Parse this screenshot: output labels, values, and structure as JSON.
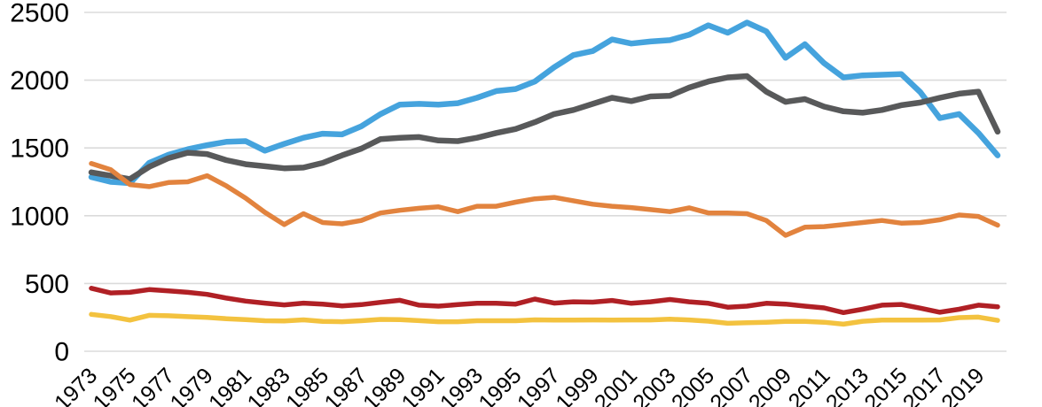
{
  "chart_data": {
    "type": "line",
    "title": "",
    "xlabel": "",
    "ylabel": "",
    "legend": "none",
    "grid": "horizontal-only",
    "ylim": [
      0,
      2500
    ],
    "y_ticks": [
      0,
      500,
      1000,
      1500,
      2000,
      2500
    ],
    "x": [
      1973,
      1974,
      1975,
      1976,
      1977,
      1978,
      1979,
      1980,
      1981,
      1982,
      1983,
      1984,
      1985,
      1986,
      1987,
      1988,
      1989,
      1990,
      1991,
      1992,
      1993,
      1994,
      1995,
      1996,
      1997,
      1998,
      1999,
      2000,
      2001,
      2002,
      2003,
      2004,
      2005,
      2006,
      2007,
      2008,
      2009,
      2010,
      2011,
      2012,
      2013,
      2014,
      2015,
      2016,
      2017,
      2018,
      2019,
      2020
    ],
    "x_tick_labels": [
      "1973",
      "1975",
      "1977",
      "1979",
      "1981",
      "1983",
      "1985",
      "1987",
      "1989",
      "1991",
      "1993",
      "1995",
      "1997",
      "1999",
      "2001",
      "2003",
      "2005",
      "2007",
      "2009",
      "2011",
      "2013",
      "2015",
      "2017",
      "2019"
    ],
    "series": [
      {
        "name": "blue",
        "color": "#45A3DD",
        "values": [
          1285,
          1250,
          1240,
          1390,
          1450,
          1490,
          1520,
          1545,
          1550,
          1480,
          1530,
          1575,
          1605,
          1600,
          1660,
          1750,
          1820,
          1825,
          1820,
          1830,
          1870,
          1920,
          1935,
          1990,
          2095,
          2185,
          2215,
          2300,
          2270,
          2285,
          2295,
          2335,
          2405,
          2350,
          2425,
          2360,
          2165,
          2265,
          2125,
          2020,
          2035,
          2040,
          2045,
          1910,
          1720,
          1750,
          1610,
          1445
        ]
      },
      {
        "name": "dark-gray",
        "color": "#58595A",
        "values": [
          1320,
          1295,
          1270,
          1360,
          1425,
          1465,
          1455,
          1410,
          1380,
          1365,
          1350,
          1355,
          1390,
          1445,
          1495,
          1565,
          1575,
          1580,
          1555,
          1550,
          1575,
          1610,
          1640,
          1690,
          1750,
          1780,
          1825,
          1870,
          1845,
          1880,
          1885,
          1945,
          1990,
          2020,
          2030,
          1915,
          1840,
          1860,
          1805,
          1770,
          1760,
          1780,
          1815,
          1835,
          1870,
          1900,
          1915,
          1620
        ]
      },
      {
        "name": "orange",
        "color": "#E2833E",
        "values": [
          1385,
          1340,
          1230,
          1215,
          1245,
          1250,
          1295,
          1220,
          1130,
          1025,
          935,
          1015,
          950,
          940,
          965,
          1020,
          1040,
          1055,
          1065,
          1030,
          1070,
          1070,
          1100,
          1125,
          1135,
          1110,
          1085,
          1070,
          1060,
          1045,
          1030,
          1058,
          1020,
          1020,
          1015,
          965,
          855,
          915,
          920,
          935,
          950,
          965,
          945,
          950,
          970,
          1005,
          995,
          930
        ]
      },
      {
        "name": "dark-red",
        "color": "#B02025",
        "values": [
          465,
          430,
          435,
          455,
          445,
          435,
          420,
          392,
          370,
          355,
          342,
          355,
          348,
          335,
          344,
          361,
          376,
          340,
          333,
          344,
          354,
          354,
          348,
          385,
          355,
          365,
          362,
          375,
          354,
          365,
          382,
          365,
          354,
          325,
          333,
          354,
          348,
          333,
          320,
          285,
          310,
          340,
          345,
          318,
          288,
          310,
          340,
          328
        ]
      },
      {
        "name": "yellow",
        "color": "#F3C23F",
        "values": [
          272,
          256,
          230,
          265,
          262,
          255,
          250,
          240,
          233,
          225,
          224,
          232,
          220,
          218,
          225,
          235,
          233,
          226,
          218,
          218,
          225,
          225,
          225,
          232,
          230,
          230,
          231,
          230,
          231,
          231,
          236,
          231,
          222,
          206,
          210,
          214,
          220,
          220,
          214,
          200,
          221,
          230,
          230,
          230,
          231,
          248,
          252,
          228
        ]
      }
    ]
  },
  "colors": {
    "background": "#FFFFFF",
    "gridline": "#DBDBDB",
    "tick_text": "#000000"
  }
}
